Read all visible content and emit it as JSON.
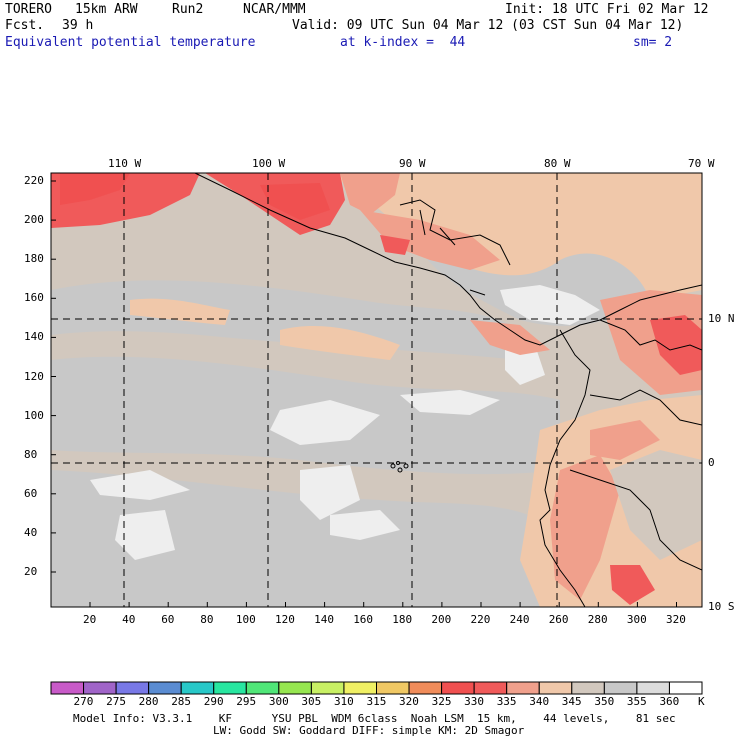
{
  "header": {
    "model": "TORERO",
    "resolution": "15km ARW",
    "run": "Run2",
    "org": "NCAR/MMM",
    "init": "Init: 18 UTC Fri 02 Mar 12",
    "fcst_label": "Fcst.",
    "fcst_value": "39 h",
    "valid": "Valid: 09 UTC Sun 04 Mar 12 (03 CST Sun 04 Mar 12)",
    "field": "Equivalent potential temperature",
    "level": "at k-index =  44",
    "smoothing": "sm= 2"
  },
  "map": {
    "lon_labels": [
      "110 W",
      "100 W",
      "90 W",
      "80 W",
      "70 W"
    ],
    "lat_labels": [
      "10 N",
      "0",
      "10 S"
    ],
    "y_ticks": [
      "220",
      "200",
      "180",
      "160",
      "140",
      "120",
      "100",
      "80",
      "60",
      "40",
      "20"
    ],
    "x_ticks": [
      "20",
      "40",
      "60",
      "80",
      "100",
      "120",
      "140",
      "160",
      "180",
      "200",
      "220",
      "240",
      "260",
      "280",
      "300",
      "320"
    ]
  },
  "colorbar": {
    "labels": [
      "270",
      "275",
      "280",
      "285",
      "290",
      "295",
      "300",
      "305",
      "310",
      "315",
      "320",
      "325",
      "330",
      "335",
      "340",
      "345",
      "350",
      "355",
      "360"
    ],
    "unit": "K",
    "colors": [
      "#c85ac8",
      "#a064c8",
      "#7878e6",
      "#5a8cd2",
      "#28c8c8",
      "#28e6a0",
      "#50e678",
      "#96e650",
      "#c8f064",
      "#f0f064",
      "#f0c864",
      "#f08c5a",
      "#f05050",
      "#f05a5a",
      "#f0a08c",
      "#f0c8aa",
      "#d2c8be",
      "#c8c8c8",
      "#dcdcdc",
      "#ffffff"
    ]
  },
  "footer": {
    "line1": "Model Info: V3.3.1    KF      YSU PBL  WDM 6class  Noah LSM  15 km,    44 levels,    81 sec",
    "line2": "LW: Godd SW: Goddard DIFF: simple KM: 2D Smagor"
  }
}
